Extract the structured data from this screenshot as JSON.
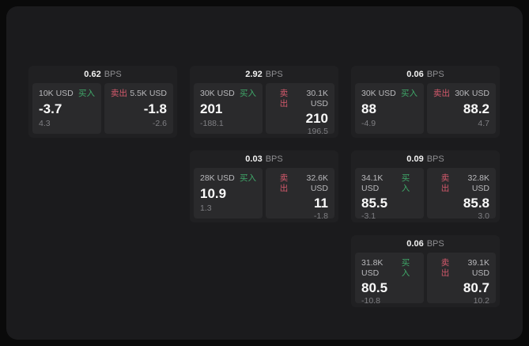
{
  "colors": {
    "page_bg": "#0a0a0a",
    "panel_bg": "#1b1b1d",
    "card_bg": "#202022",
    "tile_bg": "#2a2a2c",
    "buy_green": "#3fa869",
    "sell_red": "#d4596c"
  },
  "labels": {
    "buy": "买入",
    "sell": "卖出",
    "bps_unit": "BPS"
  },
  "cards": [
    {
      "bps": "0.62",
      "row": 1,
      "col": 1,
      "buy": {
        "amount": "10K USD",
        "value": "-3.7",
        "sub": "4.3"
      },
      "sell": {
        "amount": "5.5K USD",
        "value": "-1.8",
        "sub": "-2.6"
      }
    },
    {
      "bps": "2.92",
      "row": 1,
      "col": 2,
      "buy": {
        "amount": "30K USD",
        "value": "201",
        "sub": "-188.1"
      },
      "sell": {
        "amount": "30.1K USD",
        "value": "210",
        "sub": "196.5"
      }
    },
    {
      "bps": "0.06",
      "row": 1,
      "col": 3,
      "buy": {
        "amount": "30K USD",
        "value": "88",
        "sub": "-4.9"
      },
      "sell": {
        "amount": "30K USD",
        "value": "88.2",
        "sub": "4.7"
      }
    },
    {
      "bps": "0.03",
      "row": 2,
      "col": 2,
      "buy": {
        "amount": "28K USD",
        "value": "10.9",
        "sub": "1.3"
      },
      "sell": {
        "amount": "32.6K USD",
        "value": "11",
        "sub": "-1.8"
      }
    },
    {
      "bps": "0.09",
      "row": 2,
      "col": 3,
      "buy": {
        "amount": "34.1K USD",
        "value": "85.5",
        "sub": "-3.1"
      },
      "sell": {
        "amount": "32.8K USD",
        "value": "85.8",
        "sub": "3.0"
      }
    },
    {
      "bps": "0.06",
      "row": 3,
      "col": 3,
      "buy": {
        "amount": "31.8K USD",
        "value": "80.5",
        "sub": "-10.8"
      },
      "sell": {
        "amount": "39.1K USD",
        "value": "80.7",
        "sub": "10.2"
      }
    }
  ]
}
